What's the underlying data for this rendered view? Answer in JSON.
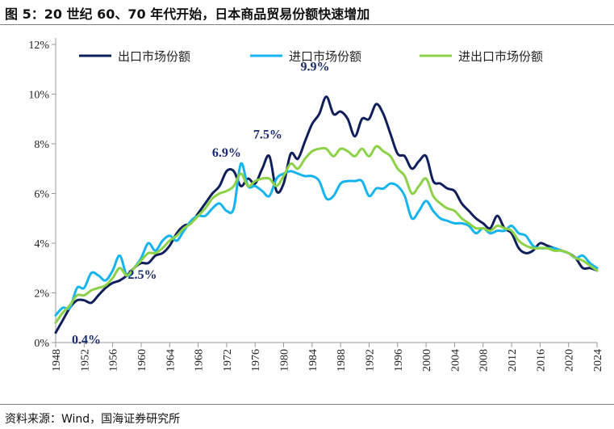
{
  "title": "图 5：20 世纪 60、70 年代开始，日本商品贸易份额快速增加",
  "source": "资料来源：Wind，国海证券研究所",
  "chart_data": {
    "type": "line",
    "title": "图 5：20 世纪 60、70 年代开始，日本商品贸易份额快速增加",
    "xlabel": "",
    "ylabel": "",
    "xlim": [
      1948,
      2024
    ],
    "ylim": [
      0,
      12
    ],
    "x_ticks": [
      "1948",
      "1952",
      "1956",
      "1960",
      "1964",
      "1968",
      "1972",
      "1976",
      "1980",
      "1984",
      "1988",
      "1992",
      "1996",
      "2000",
      "2004",
      "2008",
      "2012",
      "2016",
      "2020",
      "2024"
    ],
    "y_ticks": [
      "0%",
      "2%",
      "4%",
      "6%",
      "8%",
      "10%",
      "12%"
    ],
    "legend_position": "top",
    "x": [
      1948,
      1949,
      1950,
      1951,
      1952,
      1953,
      1954,
      1955,
      1956,
      1957,
      1958,
      1959,
      1960,
      1961,
      1962,
      1963,
      1964,
      1965,
      1966,
      1967,
      1968,
      1969,
      1970,
      1971,
      1972,
      1973,
      1974,
      1975,
      1976,
      1977,
      1978,
      1979,
      1980,
      1981,
      1982,
      1983,
      1984,
      1985,
      1986,
      1987,
      1988,
      1989,
      1990,
      1991,
      1992,
      1993,
      1994,
      1995,
      1996,
      1997,
      1998,
      1999,
      2000,
      2001,
      2002,
      2003,
      2004,
      2005,
      2006,
      2007,
      2008,
      2009,
      2010,
      2011,
      2012,
      2013,
      2014,
      2015,
      2016,
      2017,
      2018,
      2019,
      2020,
      2021,
      2022,
      2023,
      2024
    ],
    "series": [
      {
        "name": "出口市场份额",
        "color": "#0f1f5c",
        "values": [
          0.4,
          0.9,
          1.4,
          1.7,
          1.7,
          1.6,
          1.9,
          2.2,
          2.4,
          2.5,
          2.7,
          3.0,
          3.2,
          3.2,
          3.5,
          3.6,
          3.9,
          4.4,
          4.7,
          4.8,
          5.2,
          5.6,
          6.0,
          6.3,
          6.9,
          6.9,
          6.3,
          6.6,
          6.4,
          7.0,
          7.5,
          6.1,
          6.4,
          7.6,
          7.4,
          8.1,
          8.8,
          9.2,
          9.9,
          9.2,
          9.3,
          9.0,
          8.3,
          9.0,
          9.0,
          9.6,
          9.2,
          8.4,
          7.6,
          7.5,
          7.0,
          7.3,
          7.5,
          6.5,
          6.4,
          6.2,
          6.1,
          5.6,
          5.3,
          5.0,
          4.8,
          4.6,
          5.1,
          4.6,
          4.4,
          3.8,
          3.6,
          3.7,
          4.0,
          3.9,
          3.8,
          3.7,
          3.6,
          3.4,
          3.0,
          3.0,
          2.9
        ]
      },
      {
        "name": "进口市场份额",
        "color": "#16b4ee",
        "values": [
          1.1,
          1.4,
          1.4,
          2.2,
          2.2,
          2.8,
          2.7,
          2.5,
          2.9,
          3.5,
          2.7,
          3.0,
          3.4,
          4.0,
          3.7,
          4.1,
          4.3,
          4.1,
          4.5,
          4.9,
          5.1,
          5.1,
          5.4,
          5.6,
          5.3,
          5.4,
          7.2,
          6.3,
          6.3,
          6.1,
          5.9,
          6.6,
          6.8,
          6.9,
          6.8,
          6.7,
          6.7,
          6.5,
          5.8,
          5.9,
          6.4,
          6.5,
          6.5,
          6.5,
          5.9,
          6.2,
          6.2,
          6.4,
          6.3,
          5.9,
          5.0,
          5.3,
          5.7,
          5.3,
          5.0,
          4.9,
          4.8,
          4.8,
          4.7,
          4.4,
          4.6,
          4.4,
          4.5,
          4.5,
          4.7,
          4.4,
          4.3,
          3.9,
          3.8,
          3.8,
          3.8,
          3.7,
          3.6,
          3.4,
          3.5,
          3.2,
          3.0
        ]
      },
      {
        "name": "进出口市场份额",
        "color": "#8cd146",
        "values": [
          0.8,
          1.2,
          1.5,
          1.9,
          1.9,
          2.1,
          2.2,
          2.3,
          2.6,
          3.0,
          2.7,
          3.0,
          3.3,
          3.6,
          3.6,
          3.8,
          4.1,
          4.3,
          4.6,
          4.8,
          5.1,
          5.4,
          5.8,
          6.0,
          6.1,
          6.3,
          6.8,
          6.3,
          6.5,
          6.6,
          6.6,
          6.3,
          6.7,
          7.2,
          7.0,
          7.4,
          7.7,
          7.8,
          7.8,
          7.5,
          7.8,
          7.7,
          7.5,
          7.8,
          7.5,
          7.9,
          7.7,
          7.5,
          7.0,
          6.7,
          6.0,
          6.3,
          6.6,
          5.9,
          5.6,
          5.4,
          5.3,
          5.0,
          4.8,
          4.6,
          4.6,
          4.5,
          4.7,
          4.6,
          4.5,
          4.1,
          3.9,
          3.8,
          3.8,
          3.8,
          3.7,
          3.7,
          3.6,
          3.4,
          3.3,
          3.1,
          2.9
        ]
      }
    ],
    "annotations": [
      {
        "text": "0.4%",
        "x": 1948,
        "y": 0.4
      },
      {
        "text": "2.5%",
        "x": 1957,
        "y": 2.5
      },
      {
        "text": "6.9%",
        "x": 1972,
        "y": 6.9
      },
      {
        "text": "7.5%",
        "x": 1978,
        "y": 7.5
      },
      {
        "text": "9.9%",
        "x": 1986,
        "y": 9.9
      }
    ]
  }
}
